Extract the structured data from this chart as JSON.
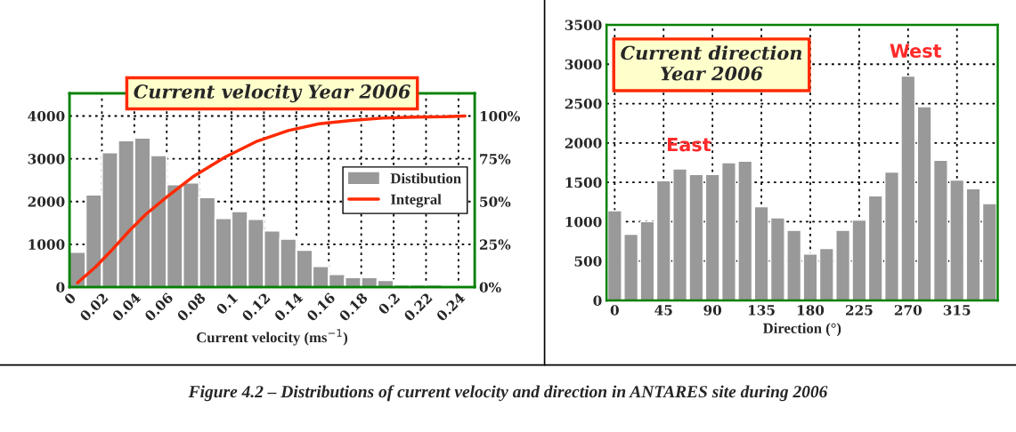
{
  "chart_data": [
    {
      "type": "histogram",
      "title": "Current velocity Year 2006",
      "xlabel": "Current velocity (ms$^{−1}$)",
      "series": [
        {
          "name": "Distibution",
          "type": "histogram",
          "color": "#999999",
          "bins": [
            0,
            0.01,
            0.02,
            0.03,
            0.04,
            0.05,
            0.06,
            0.07,
            0.08,
            0.09,
            0.1,
            0.11,
            0.12,
            0.13,
            0.14,
            0.15,
            0.16,
            0.17,
            0.18,
            0.19,
            0.2,
            0.21,
            0.22,
            0.23,
            0.24
          ],
          "values": [
            820,
            2160,
            3150,
            3430,
            3490,
            3080,
            2400,
            2440,
            2100,
            1610,
            1770,
            1590,
            1320,
            1130,
            870,
            490,
            300,
            230,
            230,
            160,
            60,
            60,
            60,
            40
          ]
        },
        {
          "name": "Integral",
          "type": "line",
          "axis": "y2",
          "color": "#ff2a00",
          "x": [
            0.005,
            0.016,
            0.025,
            0.037,
            0.047,
            0.06,
            0.076,
            0.096,
            0.115,
            0.135,
            0.154,
            0.174,
            0.193,
            0.213,
            0.232,
            0.244
          ],
          "values": [
            2.6,
            11.7,
            20.5,
            33,
            42.5,
            52.7,
            64.4,
            76,
            85,
            91.5,
            95.5,
            97.4,
            98.8,
            99.4,
            99.6,
            100
          ]
        }
      ],
      "xlim": [
        0,
        0.25
      ],
      "xticks": [
        0,
        0.02,
        0.04,
        0.06,
        0.08,
        0.1,
        0.12,
        0.14,
        0.16,
        0.18,
        0.2,
        0.22,
        0.24
      ],
      "ylim": [
        0,
        4530
      ],
      "yticks": [
        0,
        1000,
        2000,
        3000,
        4000
      ],
      "y2lim": [
        0,
        113.3
      ],
      "y2ticks": [
        {
          "value": 0,
          "label": "0%"
        },
        {
          "value": 25,
          "label": "25%"
        },
        {
          "value": 50,
          "label": "50%"
        },
        {
          "value": 75,
          "label": "75%"
        },
        {
          "value": 100,
          "label": "100%"
        }
      ],
      "grid": true,
      "legend": "right",
      "annotations": [
        "Figure 4.2 – Distributions of current velocity and direction in ANTARES site during 2006"
      ]
    },
    {
      "type": "bar",
      "title": "Current direction\nYear 2006",
      "xlabel": "Direction (°)",
      "x": [
        0,
        15,
        30,
        45,
        60,
        75,
        90,
        105,
        120,
        135,
        150,
        165,
        180,
        195,
        210,
        225,
        240,
        255,
        270,
        285,
        300,
        315,
        330,
        345
      ],
      "values": [
        1140,
        840,
        1000,
        1520,
        1670,
        1600,
        1600,
        1750,
        1770,
        1190,
        1050,
        890,
        590,
        660,
        890,
        1020,
        1330,
        1630,
        2850,
        2460,
        1780,
        1530,
        1420,
        1230
      ],
      "color": "#999999",
      "xlim": [
        -7.5,
        352.5
      ],
      "xticks": [
        0,
        45,
        90,
        135,
        180,
        225,
        270,
        315
      ],
      "ylim": [
        0,
        3500
      ],
      "yticks": [
        0,
        500,
        1000,
        1500,
        2000,
        2500,
        3000,
        3500
      ],
      "grid": true,
      "annotations": [
        "East",
        "West"
      ]
    }
  ]
}
